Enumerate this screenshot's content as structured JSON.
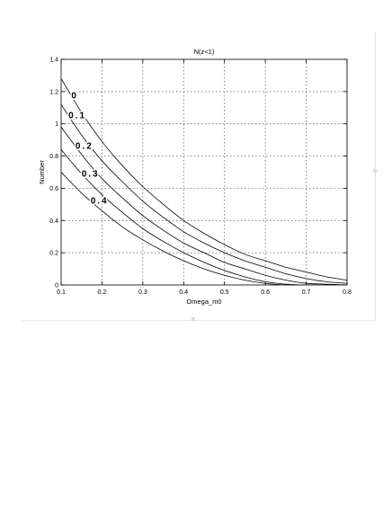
{
  "chart_data": {
    "type": "line",
    "title": "N(z<1)",
    "xlabel": "Omega_m0",
    "ylabel": "Number",
    "xlim": [
      0.1,
      0.8
    ],
    "ylim": [
      0,
      1.4
    ],
    "grid": true,
    "x_ticks": [
      "0.1",
      "0.2",
      "0.3",
      "0.4",
      "0.5",
      "0.6",
      "0.7",
      "0.8"
    ],
    "y_ticks": [
      "0",
      "0.2",
      "0.4",
      "0.6",
      "0.8",
      "1",
      "1.2",
      "1.4"
    ],
    "x": [
      0.1,
      0.15,
      0.2,
      0.25,
      0.3,
      0.35,
      0.4,
      0.45,
      0.5,
      0.55,
      0.6,
      0.65,
      0.7,
      0.75,
      0.8
    ],
    "series": [
      {
        "label": "0",
        "values": [
          1.28,
          1.07,
          0.89,
          0.74,
          0.61,
          0.5,
          0.4,
          0.32,
          0.25,
          0.19,
          0.15,
          0.11,
          0.08,
          0.05,
          0.03
        ]
      },
      {
        "label": "0.1",
        "values": [
          1.12,
          0.93,
          0.77,
          0.64,
          0.52,
          0.42,
          0.33,
          0.26,
          0.2,
          0.15,
          0.11,
          0.07,
          0.04,
          0.02,
          0.01
        ]
      },
      {
        "label": "0.2",
        "values": [
          0.98,
          0.81,
          0.66,
          0.54,
          0.43,
          0.34,
          0.26,
          0.2,
          0.14,
          0.1,
          0.06,
          0.03,
          0.01,
          0.005,
          0.0
        ]
      },
      {
        "label": "0.3",
        "values": [
          0.84,
          0.69,
          0.56,
          0.45,
          0.35,
          0.27,
          0.2,
          0.14,
          0.09,
          0.05,
          0.02,
          0.005,
          0.0,
          0.0,
          0.0
        ]
      },
      {
        "label": "0.4",
        "values": [
          0.7,
          0.57,
          0.46,
          0.36,
          0.28,
          0.21,
          0.15,
          0.1,
          0.06,
          0.03,
          0.01,
          0.0,
          0.0,
          0.0,
          0.0
        ]
      }
    ]
  }
}
